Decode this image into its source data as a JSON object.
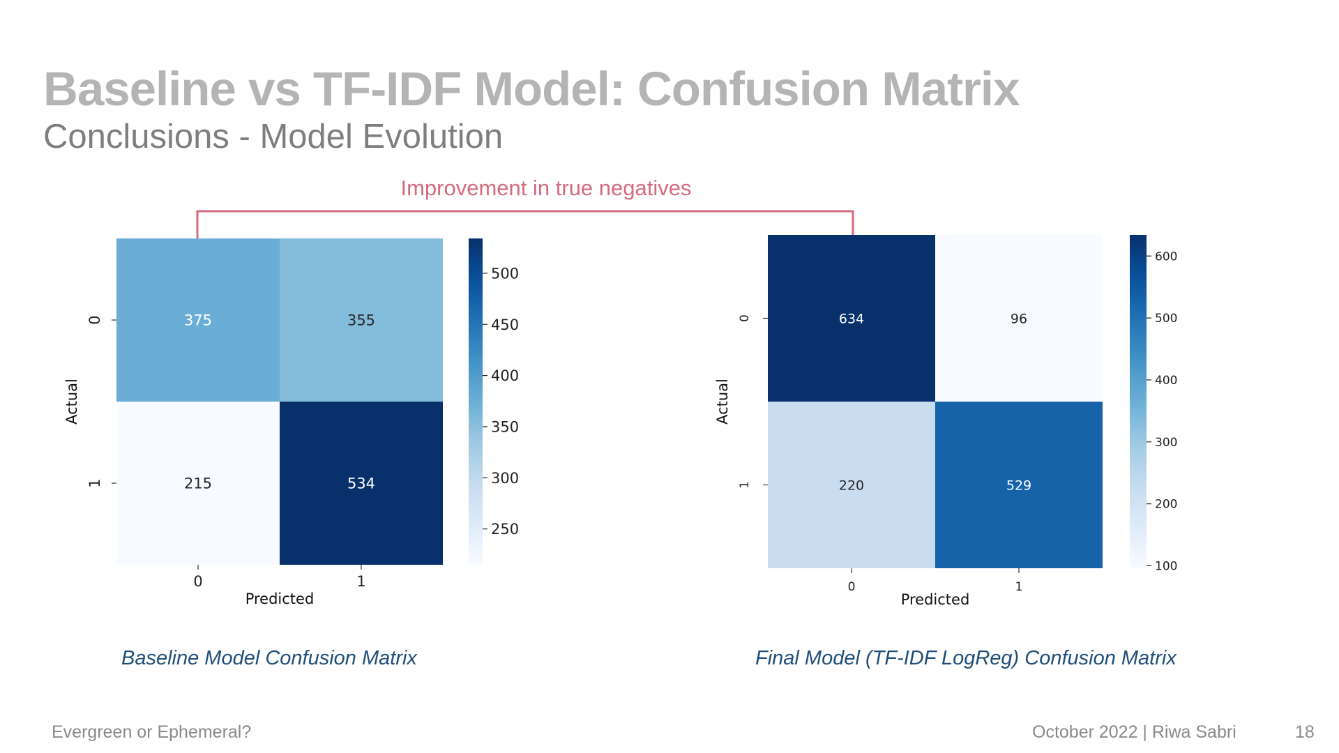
{
  "slide": {
    "title": "Baseline vs TF-IDF Model: Confusion Matrix",
    "subtitle": "Conclusions - Model Evolution",
    "annotation": "Improvement in true negatives",
    "footer_left": "Evergreen or Ephemeral?",
    "footer_right": "October 2022 | Riwa Sabri",
    "page_number": "18"
  },
  "colors": {
    "title": "#b4b4b4",
    "subtitle": "#7e7e7e",
    "annotation": "#d46a7e",
    "caption": "#1f4e79",
    "footer": "#8a8a8a"
  },
  "chart_data": [
    {
      "type": "heatmap",
      "caption": "Baseline Model Confusion Matrix",
      "xlabel": "Predicted",
      "ylabel": "Actual",
      "x_categories": [
        "0",
        "1"
      ],
      "y_categories": [
        "0",
        "1"
      ],
      "values": [
        [
          375,
          355
        ],
        [
          215,
          534
        ]
      ],
      "colormap": "Blues",
      "color_range": [
        215,
        534
      ],
      "colorbar_ticks": [
        250,
        300,
        350,
        400,
        450,
        500
      ]
    },
    {
      "type": "heatmap",
      "caption": "Final Model (TF-IDF LogReg) Confusion Matrix",
      "xlabel": "Predicted",
      "ylabel": "Actual",
      "x_categories": [
        "0",
        "1"
      ],
      "y_categories": [
        "0",
        "1"
      ],
      "values": [
        [
          634,
          96
        ],
        [
          220,
          529
        ]
      ],
      "colormap": "Blues",
      "color_range": [
        96,
        634
      ],
      "colorbar_ticks": [
        100,
        200,
        300,
        400,
        500,
        600
      ]
    }
  ]
}
